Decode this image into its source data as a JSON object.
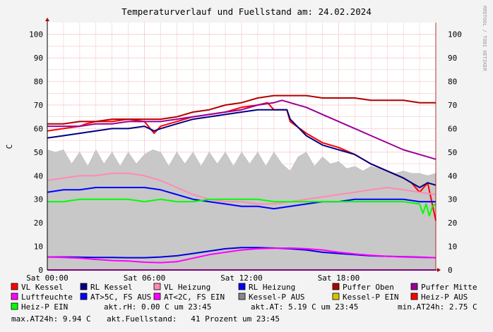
{
  "chart_data": {
    "type": "line",
    "title": "Temperaturverlauf und Fuellstand am: 24.02.2024",
    "ylabel": "C",
    "watermark": "RRDTOOL / TOBI OETIKER",
    "ylim": [
      0,
      105
    ],
    "xlim": [
      0,
      24
    ],
    "y_ticks": [
      0,
      10,
      20,
      30,
      40,
      50,
      60,
      70,
      80,
      90,
      100
    ],
    "x_ticks": [
      {
        "value": 0,
        "label": "Sat 00:00"
      },
      {
        "value": 6,
        "label": "Sat 06:00"
      },
      {
        "value": 12,
        "label": "Sat 12:00"
      },
      {
        "value": 18,
        "label": "Sat 18:00"
      }
    ],
    "grid": true,
    "series": [
      {
        "name": "Kessel-P AUS",
        "color": "#c8c8c8",
        "style": "area",
        "x": [
          0,
          0.5,
          1,
          1.5,
          2,
          2.5,
          3,
          3.5,
          4,
          4.5,
          5,
          5.5,
          6,
          6.5,
          7,
          7.5,
          8,
          8.5,
          9,
          9.5,
          10,
          10.5,
          11,
          11.5,
          12,
          12.5,
          13,
          13.5,
          14,
          14.5,
          15,
          15.5,
          16,
          16.5,
          17,
          17.5,
          18,
          18.5,
          19,
          19.5,
          20,
          20.5,
          21,
          21.5,
          22,
          22.5,
          23,
          23.5,
          24
        ],
        "values": [
          51,
          50,
          51,
          45,
          50,
          44,
          51,
          45,
          50,
          44,
          50,
          45,
          49,
          51,
          50,
          44,
          50,
          45,
          50,
          44,
          50,
          45,
          50,
          44,
          50,
          45,
          50,
          44,
          50,
          45,
          42,
          48,
          50,
          44,
          48,
          45,
          46,
          43,
          44,
          42,
          44,
          43,
          42,
          41,
          42,
          41,
          41,
          40,
          41
        ]
      },
      {
        "name": "VL Kessel",
        "color": "#ff0000",
        "x": [
          0,
          1,
          2,
          2.4,
          3,
          4,
          5,
          6,
          6.6,
          7,
          8,
          9,
          10,
          11,
          12,
          13,
          13.6,
          14,
          14.8,
          15,
          16,
          17,
          18,
          19,
          20,
          21,
          22,
          22.5,
          23,
          23.5,
          24
        ],
        "values": [
          59,
          60,
          61,
          62,
          63,
          63,
          64,
          63,
          58,
          61,
          63,
          65,
          66,
          67,
          69,
          70,
          71,
          68,
          68,
          63,
          58,
          54,
          52,
          49,
          45,
          42,
          39,
          37,
          33,
          37,
          21
        ]
      },
      {
        "name": "RL Kessel",
        "color": "#000080",
        "x": [
          0,
          1,
          2,
          3,
          4,
          5,
          6,
          6.6,
          7,
          8,
          9,
          10,
          11,
          12,
          13,
          13.6,
          14,
          14.8,
          15,
          16,
          17,
          18,
          19,
          20,
          21,
          22,
          22.5,
          23,
          23.5,
          24
        ],
        "values": [
          56,
          57,
          58,
          59,
          60,
          60,
          61,
          59,
          60,
          62,
          64,
          65,
          66,
          67,
          68,
          68,
          68,
          68,
          64,
          57,
          53,
          51,
          49,
          45,
          42,
          39,
          37,
          35,
          37,
          36
        ]
      },
      {
        "name": "VL Heizung",
        "color": "#ff8ab4",
        "x": [
          0,
          1,
          2,
          3,
          4,
          5,
          6,
          7,
          8,
          9,
          10,
          11,
          12,
          13,
          14,
          15,
          16,
          17,
          18,
          19,
          20,
          21,
          22,
          23,
          24
        ],
        "values": [
          38,
          39,
          40,
          40,
          41,
          41,
          40,
          38,
          35,
          32,
          30,
          29,
          29,
          28,
          28,
          29,
          30,
          31,
          32,
          33,
          34,
          35,
          34,
          33,
          32
        ]
      },
      {
        "name": "RL Heizung",
        "color": "#0000ff",
        "x": [
          0,
          1,
          2,
          3,
          4,
          5,
          6,
          7,
          8,
          9,
          10,
          11,
          12,
          13,
          14,
          15,
          16,
          17,
          18,
          19,
          20,
          21,
          22,
          23,
          24
        ],
        "values": [
          33,
          34,
          34,
          35,
          35,
          35,
          35,
          34,
          32,
          30,
          29,
          28,
          27,
          27,
          26,
          27,
          28,
          29,
          29,
          30,
          30,
          30,
          30,
          29,
          29
        ]
      },
      {
        "name": "Puffer Oben",
        "color": "#b00000",
        "x": [
          0,
          1,
          2,
          3,
          4,
          5,
          6,
          7,
          8,
          9,
          10,
          11,
          12,
          13,
          14,
          15,
          16,
          17,
          18,
          19,
          20,
          21,
          22,
          23,
          24
        ],
        "values": [
          62,
          62,
          63,
          63,
          64,
          64,
          64,
          64,
          65,
          67,
          68,
          70,
          71,
          73,
          74,
          74,
          74,
          73,
          73,
          73,
          72,
          72,
          72,
          71,
          71
        ]
      },
      {
        "name": "Puffer Mitte",
        "color": "#990099",
        "x": [
          0,
          1,
          2,
          3,
          4,
          5,
          6,
          7,
          8,
          9,
          10,
          11,
          12,
          13,
          14,
          14.5,
          15,
          16,
          17,
          18,
          19,
          20,
          21,
          22,
          23,
          24
        ],
        "values": [
          61,
          61,
          61,
          62,
          62,
          63,
          63,
          63,
          64,
          65,
          66,
          67,
          68,
          70,
          71,
          72,
          71,
          69,
          66,
          63,
          60,
          57,
          54,
          51,
          49,
          47
        ]
      },
      {
        "name": "Luftfeuchte",
        "color": "#ff00ff",
        "x": [
          0,
          24
        ],
        "values": [
          0,
          0
        ]
      },
      {
        "name": "AT>5C, FS AUS",
        "color": "#0000ff",
        "x": [],
        "values": []
      },
      {
        "name": "AT<2C, FS EIN",
        "color": "#ff00ff",
        "x": [],
        "values": []
      },
      {
        "name": "Kessel-P EIN",
        "color": "#d4c400",
        "x": [],
        "values": []
      },
      {
        "name": "Heiz-P AUS",
        "color": "#ff0000",
        "x": [],
        "values": []
      },
      {
        "name": "Heiz-P EIN",
        "color": "#00ff00",
        "x": [
          0,
          1,
          2,
          3,
          4,
          5,
          6,
          7,
          8,
          9,
          10,
          11,
          12,
          13,
          14,
          15,
          16,
          17,
          18,
          19,
          20,
          21,
          22,
          23,
          23.2,
          23.4,
          23.6,
          23.8,
          24
        ],
        "values": [
          29,
          29,
          30,
          30,
          30,
          30,
          29,
          30,
          29,
          29,
          30,
          30,
          30,
          30,
          29,
          29,
          29,
          29,
          29,
          29,
          29,
          29,
          29,
          28,
          24,
          28,
          23,
          27,
          28
        ]
      },
      {
        "name": "Fuellstand",
        "color": "#0000dd",
        "legend": false,
        "x": [
          0,
          1,
          2,
          3,
          4,
          5,
          6,
          7,
          8,
          9,
          10,
          11,
          12,
          13,
          14,
          15,
          16,
          17,
          18,
          19,
          20,
          21,
          22,
          23,
          24
        ],
        "values": [
          5.5,
          5.5,
          5.4,
          5.3,
          5.3,
          5.2,
          5.2,
          5.5,
          6,
          7,
          8,
          9,
          9.5,
          9.5,
          9.3,
          9,
          8.5,
          7.5,
          7,
          6.5,
          6,
          5.8,
          5.6,
          5.4,
          5.2
        ]
      },
      {
        "name": "AT",
        "color": "#ff00ff",
        "legend": false,
        "x": [
          0,
          1,
          2,
          3,
          4,
          5,
          6,
          7,
          8,
          9,
          10,
          11,
          12,
          13,
          14,
          15,
          16,
          17,
          18,
          19,
          20,
          21,
          22,
          23,
          24
        ],
        "values": [
          5.5,
          5.3,
          5,
          4.5,
          4,
          3.8,
          3.3,
          3.1,
          3.5,
          5,
          6.5,
          7.5,
          8.5,
          9,
          9.2,
          9.3,
          9,
          8.5,
          7.5,
          6.8,
          6.2,
          5.8,
          5.5,
          5.3,
          5.2
        ]
      }
    ],
    "legend_rows": [
      [
        "VL Kessel",
        "RL Kessel",
        "VL Heizung",
        "RL Heizung",
        "Puffer Oben",
        "Puffer Mitte"
      ],
      [
        "Luftfeuchte",
        "AT>5C, FS AUS",
        "AT<2C, FS EIN",
        "Kessel-P AUS",
        "Kessel-P EIN",
        "Heiz-P AUS"
      ],
      [
        "Heiz-P EIN"
      ]
    ],
    "legend_colors": {
      "VL Kessel": "#ff0000",
      "RL Kessel": "#000080",
      "VL Heizung": "#ff8ab4",
      "RL Heizung": "#0000ff",
      "Puffer Oben": "#b00000",
      "Puffer Mitte": "#990099",
      "Luftfeuchte": "#ff00ff",
      "AT>5C, FS AUS": "#0000ff",
      "AT<2C, FS EIN": "#ff00ff",
      "Kessel-P AUS": "#888888",
      "Kessel-P EIN": "#d4c400",
      "Heiz-P AUS": "#ff0000",
      "Heiz-P EIN": "#00ff00"
    },
    "stats": {
      "row3": [
        "akt.rH: 0.00 C um 23:45",
        "akt.AT: 5.19 C um 23:45",
        "min.AT24h: 2.75 C"
      ],
      "row4": [
        "max.AT24h: 9.94 C",
        "akt.Fuellstand:   41 Prozent um 23:45"
      ]
    }
  }
}
